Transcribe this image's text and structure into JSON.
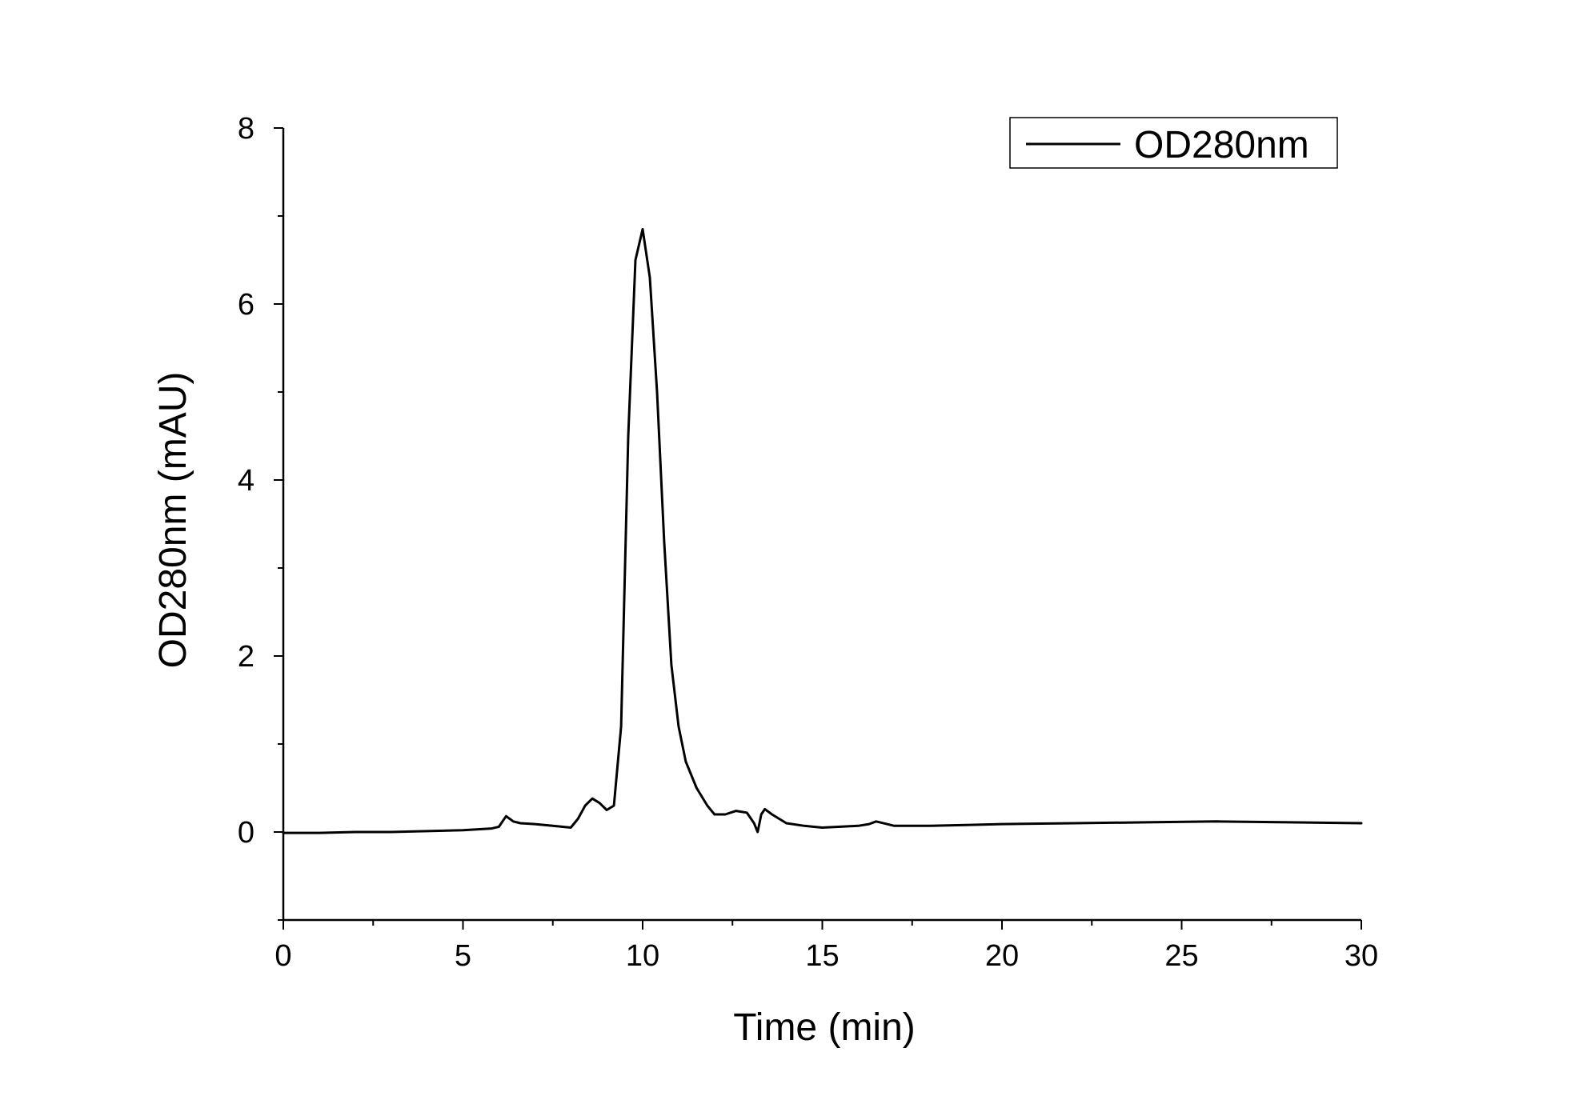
{
  "chart_data": {
    "type": "line",
    "title": "",
    "xlabel": "Time (min)",
    "ylabel": "OD280nm (mAU)",
    "xlim": [
      0,
      30
    ],
    "ylim": [
      -1,
      8
    ],
    "xticks": [
      0,
      5,
      10,
      15,
      20,
      25,
      30
    ],
    "xtick_labels": [
      "0",
      "5",
      "10",
      "15",
      "20",
      "25",
      "30"
    ],
    "yticks": [
      0,
      2,
      4,
      6,
      8
    ],
    "ytick_labels": [
      "0",
      "2",
      "4",
      "6",
      "8"
    ],
    "grid": false,
    "legend": {
      "position": "top-right",
      "entries": [
        "OD280nm"
      ]
    },
    "series": [
      {
        "name": "OD280nm",
        "color": "#000000",
        "x": [
          0,
          1,
          2,
          3,
          4,
          5,
          5.8,
          6.0,
          6.2,
          6.4,
          6.6,
          7.0,
          7.5,
          8.0,
          8.2,
          8.4,
          8.6,
          8.8,
          9.0,
          9.2,
          9.4,
          9.6,
          9.8,
          10.0,
          10.2,
          10.4,
          10.6,
          10.8,
          11.0,
          11.2,
          11.5,
          11.8,
          12.0,
          12.3,
          12.6,
          12.9,
          13.0,
          13.1,
          13.2,
          13.3,
          13.4,
          13.6,
          14.0,
          14.5,
          15.0,
          15.5,
          16.0,
          16.3,
          16.5,
          16.8,
          17.0,
          18.0,
          19.0,
          20.0,
          22.0,
          24.0,
          26.0,
          28.0,
          30.0
        ],
        "y": [
          -0.01,
          -0.01,
          0.0,
          0.0,
          0.01,
          0.02,
          0.04,
          0.06,
          0.18,
          0.12,
          0.1,
          0.09,
          0.07,
          0.05,
          0.15,
          0.3,
          0.38,
          0.33,
          0.25,
          0.3,
          1.2,
          4.5,
          6.5,
          6.85,
          6.3,
          5.0,
          3.3,
          1.9,
          1.2,
          0.8,
          0.5,
          0.3,
          0.2,
          0.2,
          0.24,
          0.22,
          0.16,
          0.1,
          0.0,
          0.2,
          0.26,
          0.2,
          0.1,
          0.07,
          0.05,
          0.06,
          0.07,
          0.09,
          0.12,
          0.09,
          0.07,
          0.07,
          0.08,
          0.09,
          0.1,
          0.11,
          0.12,
          0.11,
          0.1
        ]
      }
    ]
  }
}
